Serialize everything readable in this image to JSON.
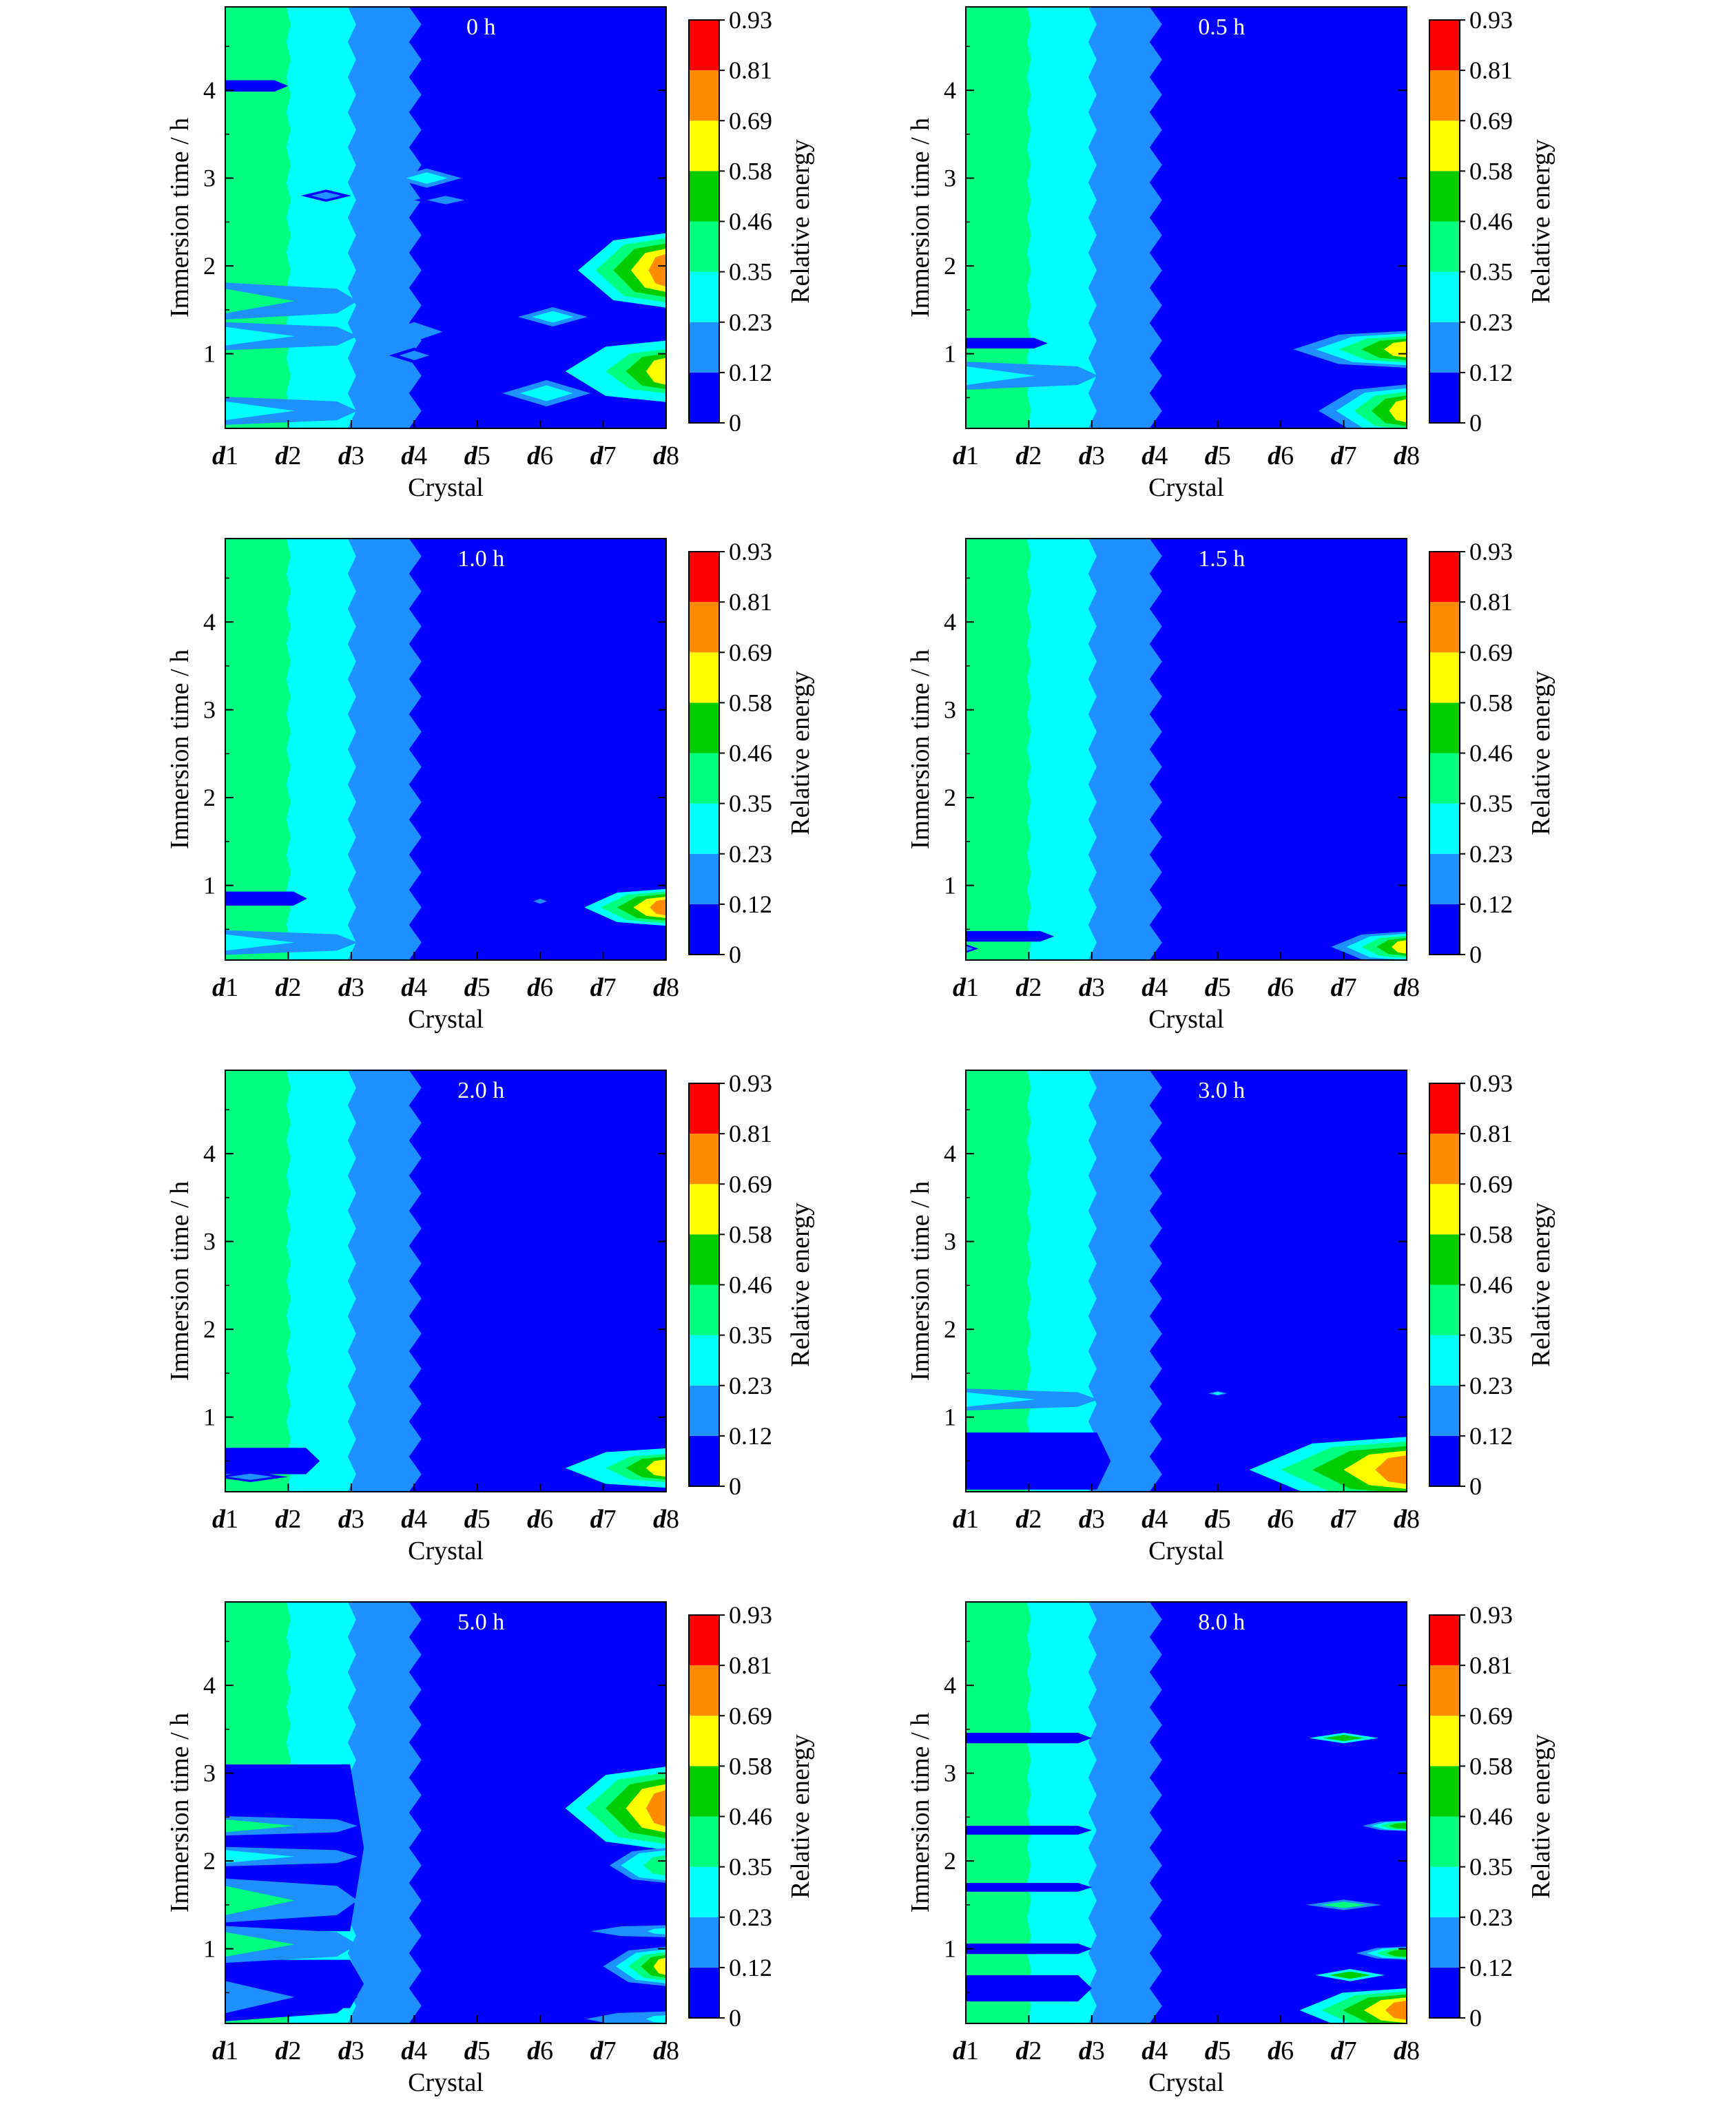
{
  "figure": {
    "colorbar_label": "Relative energy",
    "colorbar_ticks": [
      "0",
      "0.12",
      "0.23",
      "0.35",
      "0.46",
      "0.58",
      "0.69",
      "0.81",
      "0.93"
    ],
    "colorbar_colors": [
      "#0000ff",
      "#1e90ff",
      "#00ffff",
      "#00ff7f",
      "#00cc00",
      "#ffff00",
      "#ff8c00",
      "#ff0000"
    ],
    "crystal_tick_labels": [
      {
        "prefix": "d",
        "number": "1"
      },
      {
        "prefix": "d",
        "number": "2"
      },
      {
        "prefix": "d",
        "number": "3"
      },
      {
        "prefix": "d",
        "number": "4"
      },
      {
        "prefix": "d",
        "number": "5"
      },
      {
        "prefix": "d",
        "number": "6"
      },
      {
        "prefix": "d",
        "number": "7"
      },
      {
        "prefix": "d",
        "number": "8"
      }
    ]
  },
  "chart_data": [
    {
      "type": "heatmap",
      "title": "0 h",
      "xlabel": "Crystal",
      "ylabel": "Immersion time / h",
      "categories": [
        "d1",
        "d2",
        "d3",
        "d4",
        "d5",
        "d6",
        "d7",
        "d8"
      ],
      "yticks": [
        1,
        2,
        3,
        4
      ],
      "ylim": [
        0.15,
        4.95
      ],
      "zticks": [
        0,
        0.12,
        0.23,
        0.35,
        0.46,
        0.58,
        0.69,
        0.81,
        0.93
      ],
      "zlabel": "Relative energy",
      "features": [
        {
          "kind": "gradient",
          "levels": [
            0.4,
            0.3,
            0.15
          ]
        },
        {
          "kind": "stripe",
          "y": 4.05,
          "width": 0.13,
          "len": 1.0,
          "level": 0
        },
        {
          "kind": "blob",
          "x": 4.2,
          "y": 3.0,
          "w": 1.1,
          "h": 0.22,
          "value": 0.25
        },
        {
          "kind": "blob",
          "x": 4.5,
          "y": 2.75,
          "w": 1.0,
          "h": 0.16,
          "value": 0.15
        },
        {
          "kind": "blob",
          "x": 2.6,
          "y": 2.8,
          "w": 0.8,
          "h": 0.14,
          "value": 0.14
        },
        {
          "kind": "hband",
          "y": 1.6,
          "width": 0.42,
          "value": 0.35
        },
        {
          "kind": "hband",
          "y": 1.2,
          "width": 0.32,
          "value": 0.28
        },
        {
          "kind": "hband",
          "y": 0.35,
          "width": 0.32,
          "value": 0.3
        },
        {
          "kind": "blob",
          "x": 4.0,
          "y": 1.25,
          "w": 0.9,
          "h": 0.22,
          "value": 0.22
        },
        {
          "kind": "blob",
          "x": 4.0,
          "y": 0.98,
          "w": 0.8,
          "h": 0.18,
          "value": 0.18
        },
        {
          "kind": "blob",
          "x": 6.2,
          "y": 1.42,
          "w": 1.1,
          "h": 0.22,
          "value": 0.26
        },
        {
          "kind": "blob",
          "x": 6.1,
          "y": 0.55,
          "w": 1.4,
          "h": 0.3,
          "value": 0.34
        },
        {
          "kind": "edge",
          "y": 1.95,
          "width": 0.85,
          "ext": 1.4,
          "peak": 0.72
        },
        {
          "kind": "edge",
          "y": 0.8,
          "width": 0.7,
          "ext": 1.6,
          "peak": 0.66
        }
      ]
    },
    {
      "type": "heatmap",
      "title": "0.5 h",
      "xlabel": "Crystal",
      "ylabel": "Immersion time / h",
      "categories": [
        "d1",
        "d2",
        "d3",
        "d4",
        "d5",
        "d6",
        "d7",
        "d8"
      ],
      "yticks": [
        1,
        2,
        3,
        4
      ],
      "ylim": [
        0.15,
        4.95
      ],
      "zticks": [
        0,
        0.12,
        0.23,
        0.35,
        0.46,
        0.58,
        0.69,
        0.81,
        0.93
      ],
      "zlabel": "Relative energy",
      "features": [
        {
          "kind": "gradient",
          "levels": [
            0.42,
            0.32,
            0.16
          ]
        },
        {
          "kind": "stripe",
          "y": 1.12,
          "width": 0.12,
          "len": 1.3,
          "level": 0
        },
        {
          "kind": "hband",
          "y": 0.75,
          "width": 0.32,
          "value": 0.3
        },
        {
          "kind": "edge",
          "y": 1.05,
          "width": 0.42,
          "ext": 1.8,
          "peak": 0.62
        },
        {
          "kind": "edge",
          "y": 0.35,
          "width": 0.6,
          "ext": 1.4,
          "peak": 0.6
        }
      ]
    },
    {
      "type": "heatmap",
      "title": "1.0 h",
      "xlabel": "Crystal",
      "ylabel": "Immersion time / h",
      "categories": [
        "d1",
        "d2",
        "d3",
        "d4",
        "d5",
        "d6",
        "d7",
        "d8"
      ],
      "yticks": [
        1,
        2,
        3,
        4
      ],
      "ylim": [
        0.15,
        4.95
      ],
      "zticks": [
        0,
        0.12,
        0.23,
        0.35,
        0.46,
        0.58,
        0.69,
        0.81,
        0.93
      ],
      "zlabel": "Relative energy",
      "features": [
        {
          "kind": "gradient",
          "levels": [
            0.42,
            0.32,
            0.16
          ]
        },
        {
          "kind": "stripe",
          "y": 0.85,
          "width": 0.16,
          "len": 1.3,
          "level": 0
        },
        {
          "kind": "hband",
          "y": 0.35,
          "width": 0.28,
          "value": 0.28
        },
        {
          "kind": "blob",
          "x": 6.0,
          "y": 0.82,
          "w": 0.35,
          "h": 0.1,
          "value": 0.14
        },
        {
          "kind": "edge",
          "y": 0.75,
          "width": 0.42,
          "ext": 1.3,
          "peak": 0.78
        }
      ]
    },
    {
      "type": "heatmap",
      "title": "1.5 h",
      "xlabel": "Crystal",
      "ylabel": "Immersion time / h",
      "categories": [
        "d1",
        "d2",
        "d3",
        "d4",
        "d5",
        "d6",
        "d7",
        "d8"
      ],
      "yticks": [
        1,
        2,
        3,
        4
      ],
      "ylim": [
        0.15,
        4.95
      ],
      "zticks": [
        0,
        0.12,
        0.23,
        0.35,
        0.46,
        0.58,
        0.69,
        0.81,
        0.93
      ],
      "zlabel": "Relative energy",
      "features": [
        {
          "kind": "gradient",
          "levels": [
            0.42,
            0.32,
            0.16
          ]
        },
        {
          "kind": "stripe",
          "y": 0.42,
          "width": 0.12,
          "len": 1.4,
          "level": 0
        },
        {
          "kind": "blob",
          "x": 1.0,
          "y": 0.28,
          "w": 0.4,
          "h": 0.1,
          "value": 0.15
        },
        {
          "kind": "edge",
          "y": 0.3,
          "width": 0.35,
          "ext": 1.2,
          "peak": 0.62
        }
      ]
    },
    {
      "type": "heatmap",
      "title": "2.0 h",
      "xlabel": "Crystal",
      "ylabel": "Immersion time / h",
      "categories": [
        "d1",
        "d2",
        "d3",
        "d4",
        "d5",
        "d6",
        "d7",
        "d8"
      ],
      "yticks": [
        1,
        2,
        3,
        4
      ],
      "ylim": [
        0.15,
        4.95
      ],
      "zticks": [
        0,
        0.12,
        0.23,
        0.35,
        0.46,
        0.58,
        0.69,
        0.81,
        0.93
      ],
      "zlabel": "Relative energy",
      "features": [
        {
          "kind": "gradient",
          "levels": [
            0.42,
            0.32,
            0.16
          ]
        },
        {
          "kind": "stripe",
          "y": 0.5,
          "width": 0.3,
          "len": 1.5,
          "level": 0
        },
        {
          "kind": "blob",
          "x": 1.4,
          "y": 0.32,
          "w": 1.2,
          "h": 0.12,
          "value": 0.16
        },
        {
          "kind": "edge",
          "y": 0.42,
          "width": 0.45,
          "ext": 1.6,
          "peak": 0.66
        }
      ]
    },
    {
      "type": "heatmap",
      "title": "3.0 h",
      "xlabel": "Crystal",
      "ylabel": "Immersion time / h",
      "categories": [
        "d1",
        "d2",
        "d3",
        "d4",
        "d5",
        "d6",
        "d7",
        "d8"
      ],
      "yticks": [
        1,
        2,
        3,
        4
      ],
      "ylim": [
        0.15,
        4.95
      ],
      "zticks": [
        0,
        0.12,
        0.23,
        0.35,
        0.46,
        0.58,
        0.69,
        0.81,
        0.93
      ],
      "zlabel": "Relative energy",
      "features": [
        {
          "kind": "gradient",
          "levels": [
            0.42,
            0.32,
            0.16
          ]
        },
        {
          "kind": "stripe",
          "y": 0.5,
          "width": 0.65,
          "len": 2.3,
          "level": 0
        },
        {
          "kind": "hband",
          "y": 1.2,
          "width": 0.25,
          "value": 0.25
        },
        {
          "kind": "blob",
          "x": 5.0,
          "y": 1.27,
          "w": 0.3,
          "h": 0.05,
          "value": 0.25
        },
        {
          "kind": "edge",
          "y": 0.4,
          "width": 0.75,
          "ext": 2.5,
          "peak": 0.7
        }
      ]
    },
    {
      "type": "heatmap",
      "title": "5.0 h",
      "xlabel": "Crystal",
      "ylabel": "Immersion time / h",
      "categories": [
        "d1",
        "d2",
        "d3",
        "d4",
        "d5",
        "d6",
        "d7",
        "d8"
      ],
      "yticks": [
        1,
        2,
        3,
        4
      ],
      "ylim": [
        0.15,
        4.95
      ],
      "zticks": [
        0,
        0.12,
        0.23,
        0.35,
        0.46,
        0.58,
        0.69,
        0.81,
        0.93
      ],
      "zlabel": "Relative energy",
      "features": [
        {
          "kind": "gradient",
          "levels": [
            0.42,
            0.32,
            0.16
          ]
        },
        {
          "kind": "stripe",
          "y": 2.15,
          "width": 1.9,
          "len": 2.2,
          "level": 0
        },
        {
          "kind": "stripe",
          "y": 0.6,
          "width": 0.55,
          "len": 2.2,
          "level": 0
        },
        {
          "kind": "hband",
          "y": 2.4,
          "width": 0.22,
          "value": 0.35
        },
        {
          "kind": "hband",
          "y": 2.05,
          "width": 0.22,
          "value": 0.3
        },
        {
          "kind": "hband",
          "y": 1.55,
          "width": 0.5,
          "value": 0.4
        },
        {
          "kind": "hband",
          "y": 1.05,
          "width": 0.42,
          "value": 0.38
        },
        {
          "kind": "hband",
          "y": 0.45,
          "width": 0.55,
          "value": 0.22
        },
        {
          "kind": "edge",
          "y": 2.6,
          "width": 0.95,
          "ext": 1.6,
          "peak": 0.78
        },
        {
          "kind": "edge",
          "y": 1.95,
          "width": 0.4,
          "ext": 0.9,
          "peak": 0.45
        },
        {
          "kind": "edge",
          "y": 1.2,
          "width": 0.16,
          "ext": 1.5,
          "peak": 0.25
        },
        {
          "kind": "edge",
          "y": 0.8,
          "width": 0.45,
          "ext": 1.0,
          "peak": 0.62
        },
        {
          "kind": "edge",
          "y": 0.2,
          "width": 0.2,
          "ext": 1.6,
          "peak": 0.25
        }
      ]
    },
    {
      "type": "heatmap",
      "title": "8.0 h",
      "xlabel": "Crystal",
      "ylabel": "Immersion time / h",
      "categories": [
        "d1",
        "d2",
        "d3",
        "d4",
        "d5",
        "d6",
        "d7",
        "d8"
      ],
      "yticks": [
        1,
        2,
        3,
        4
      ],
      "ylim": [
        0.15,
        4.95
      ],
      "zticks": [
        0,
        0.12,
        0.23,
        0.35,
        0.46,
        0.58,
        0.69,
        0.81,
        0.93
      ],
      "zlabel": "Relative energy",
      "features": [
        {
          "kind": "gradient",
          "levels": [
            0.42,
            0.32,
            0.16
          ]
        },
        {
          "kind": "stripe",
          "y": 3.4,
          "width": 0.12,
          "len": 2.0,
          "level": 0
        },
        {
          "kind": "stripe",
          "y": 2.35,
          "width": 0.1,
          "len": 2.0,
          "level": 0
        },
        {
          "kind": "stripe",
          "y": 1.7,
          "width": 0.1,
          "len": 2.0,
          "level": 0
        },
        {
          "kind": "stripe",
          "y": 1.0,
          "width": 0.12,
          "len": 2.0,
          "level": 0
        },
        {
          "kind": "stripe",
          "y": 0.55,
          "width": 0.3,
          "len": 2.0,
          "level": 0
        },
        {
          "kind": "blob",
          "x": 7.0,
          "y": 3.4,
          "w": 1.1,
          "h": 0.12,
          "value": 0.52
        },
        {
          "kind": "blob",
          "x": 7.0,
          "y": 1.5,
          "w": 1.2,
          "h": 0.12,
          "value": 0.35
        },
        {
          "kind": "blob",
          "x": 7.1,
          "y": 0.7,
          "w": 1.1,
          "h": 0.14,
          "value": 0.55
        },
        {
          "kind": "edge",
          "y": 2.4,
          "width": 0.12,
          "ext": 0.7,
          "peak": 0.55
        },
        {
          "kind": "edge",
          "y": 0.95,
          "width": 0.15,
          "ext": 0.8,
          "peak": 0.55
        },
        {
          "kind": "edge",
          "y": 0.3,
          "width": 0.5,
          "ext": 1.7,
          "peak": 0.7
        }
      ]
    }
  ]
}
